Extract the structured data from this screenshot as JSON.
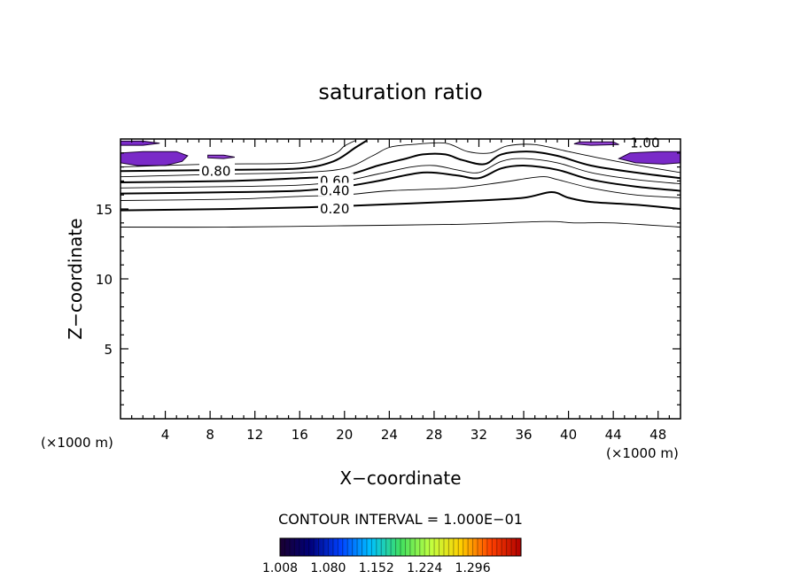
{
  "chart_data": {
    "type": "contour",
    "title": "saturation ratio",
    "xlabel": "X−coordinate",
    "ylabel": "Z−coordinate",
    "x_unit_label": "(×1000 m)",
    "z_unit_label": "(×1000 m)",
    "xlim": [
      0,
      50
    ],
    "zlim": [
      0,
      20
    ],
    "x_ticks": [
      4,
      8,
      12,
      16,
      20,
      24,
      28,
      32,
      36,
      40,
      44,
      48
    ],
    "x_tick_labels": [
      "4",
      "8",
      "12",
      "16",
      "20",
      "24",
      "28",
      "32",
      "36",
      "40",
      "44",
      "48"
    ],
    "z_ticks": [
      5,
      10,
      15
    ],
    "z_tick_labels": [
      "5",
      "10",
      "15"
    ],
    "contour_interval_text": "CONTOUR INTERVAL = 1.000E−01",
    "contour_labels": [
      {
        "text": "1.00",
        "x": 45.5,
        "z": 19.7
      },
      {
        "text": "0.80",
        "x": 7.2,
        "z": 17.7
      },
      {
        "text": "0.60",
        "x": 17.8,
        "z": 17.0
      },
      {
        "text": "0.40",
        "x": 17.8,
        "z": 16.3
      },
      {
        "text": "0.20",
        "x": 17.8,
        "z": 15.0
      }
    ],
    "contours": [
      {
        "level": 0.1,
        "weight": "thin",
        "points": [
          [
            0,
            13.7
          ],
          [
            10,
            13.7
          ],
          [
            20,
            13.8
          ],
          [
            30,
            13.9
          ],
          [
            38,
            14.1
          ],
          [
            40.5,
            14.0
          ],
          [
            44,
            14.0
          ],
          [
            50,
            13.7
          ]
        ]
      },
      {
        "level": 0.2,
        "weight": "bold",
        "points": [
          [
            0,
            14.9
          ],
          [
            10,
            15.0
          ],
          [
            16,
            15.1
          ],
          [
            20,
            15.2
          ],
          [
            26,
            15.4
          ],
          [
            32,
            15.6
          ],
          [
            36,
            15.8
          ],
          [
            38.5,
            16.2
          ],
          [
            40,
            15.8
          ],
          [
            42,
            15.5
          ],
          [
            46,
            15.3
          ],
          [
            50,
            15.0
          ]
        ]
      },
      {
        "level": 0.3,
        "weight": "thin",
        "points": [
          [
            0,
            15.6
          ],
          [
            10,
            15.7
          ],
          [
            16,
            15.9
          ],
          [
            20,
            16.0
          ],
          [
            24,
            16.3
          ],
          [
            30,
            16.5
          ],
          [
            34,
            16.9
          ],
          [
            37.5,
            17.3
          ],
          [
            39,
            17.1
          ],
          [
            42,
            16.5
          ],
          [
            46,
            16.0
          ],
          [
            50,
            15.8
          ]
        ]
      },
      {
        "level": 0.4,
        "weight": "bold",
        "points": [
          [
            0,
            16.1
          ],
          [
            10,
            16.2
          ],
          [
            16,
            16.3
          ],
          [
            20,
            16.6
          ],
          [
            23,
            17.0
          ],
          [
            27,
            17.6
          ],
          [
            30,
            17.4
          ],
          [
            32,
            17.2
          ],
          [
            34,
            17.9
          ],
          [
            36,
            18.1
          ],
          [
            39,
            17.8
          ],
          [
            42,
            17.1
          ],
          [
            46,
            16.6
          ],
          [
            50,
            16.3
          ]
        ]
      },
      {
        "level": 0.5,
        "weight": "thin",
        "points": [
          [
            0,
            16.5
          ],
          [
            10,
            16.6
          ],
          [
            16,
            16.7
          ],
          [
            20,
            17.0
          ],
          [
            23,
            17.5
          ],
          [
            26,
            18.0
          ],
          [
            28,
            18.1
          ],
          [
            30,
            17.8
          ],
          [
            32,
            17.6
          ],
          [
            34,
            18.4
          ],
          [
            36,
            18.6
          ],
          [
            39,
            18.3
          ],
          [
            42,
            17.6
          ],
          [
            46,
            17.1
          ],
          [
            50,
            16.8
          ]
        ]
      },
      {
        "level": 0.6,
        "weight": "bold",
        "points": [
          [
            0,
            16.9
          ],
          [
            10,
            17.0
          ],
          [
            16,
            17.2
          ],
          [
            20,
            17.4
          ],
          [
            23,
            18.1
          ],
          [
            25.5,
            18.6
          ],
          [
            27,
            18.9
          ],
          [
            29,
            18.9
          ],
          [
            30.5,
            18.5
          ],
          [
            32.5,
            18.2
          ],
          [
            34,
            18.9
          ],
          [
            36.5,
            19.1
          ],
          [
            39,
            18.8
          ],
          [
            42,
            18.1
          ],
          [
            46,
            17.6
          ],
          [
            50,
            17.2
          ]
        ]
      },
      {
        "level": 0.7,
        "weight": "thin",
        "points": [
          [
            0,
            17.3
          ],
          [
            10,
            17.5
          ],
          [
            16,
            17.6
          ],
          [
            20,
            17.9
          ],
          [
            22.5,
            18.8
          ],
          [
            24,
            19.4
          ],
          [
            26,
            19.6
          ],
          [
            29,
            19.7
          ],
          [
            31,
            19.1
          ],
          [
            33,
            19.0
          ],
          [
            34.5,
            19.5
          ],
          [
            37,
            19.6
          ],
          [
            40,
            19.1
          ],
          [
            43,
            18.6
          ],
          [
            47,
            18.0
          ],
          [
            50,
            17.6
          ]
        ]
      },
      {
        "level": 0.8,
        "weight": "bold",
        "points": [
          [
            0,
            17.7
          ],
          [
            10,
            17.8
          ],
          [
            16,
            17.9
          ],
          [
            19,
            18.4
          ],
          [
            21,
            19.4
          ],
          [
            22,
            19.9
          ]
        ]
      },
      {
        "level": 0.9,
        "weight": "thin",
        "points": [
          [
            0,
            18.0
          ],
          [
            8,
            18.2
          ],
          [
            16,
            18.3
          ],
          [
            19,
            18.9
          ],
          [
            20,
            19.5
          ],
          [
            21,
            19.9
          ]
        ]
      }
    ],
    "color_scale": {
      "min": 1.008,
      "max": 1.368,
      "steps": 50,
      "tick_values": [
        1.008,
        1.08,
        1.152,
        1.224,
        1.296
      ],
      "tick_labels": [
        "1.008",
        "1.080",
        "1.152",
        "1.224",
        "1.296"
      ],
      "colors": [
        "#1a0030",
        "#00007a",
        "#0040ff",
        "#00c0ff",
        "#40e060",
        "#c0ff40",
        "#ffd000",
        "#ff4000",
        "#b00000"
      ]
    },
    "shaded_regions": [
      {
        "value": 1.04,
        "color": "#7a2ac8",
        "polygon": [
          [
            0,
            18.3
          ],
          [
            1.5,
            18.1
          ],
          [
            4,
            18.1
          ],
          [
            5.5,
            18.4
          ],
          [
            6,
            18.8
          ],
          [
            5,
            19.1
          ],
          [
            2,
            19.1
          ],
          [
            0,
            19.0
          ]
        ]
      },
      {
        "value": 1.04,
        "color": "#7a2ac8",
        "polygon": [
          [
            0,
            19.55
          ],
          [
            2,
            19.55
          ],
          [
            3.5,
            19.7
          ],
          [
            2,
            19.85
          ],
          [
            0,
            19.85
          ]
        ]
      },
      {
        "value": 1.02,
        "color": "#9040d0",
        "polygon": [
          [
            7.8,
            18.65
          ],
          [
            9.2,
            18.6
          ],
          [
            10.2,
            18.7
          ],
          [
            9.2,
            18.85
          ],
          [
            7.8,
            18.85
          ]
        ]
      },
      {
        "value": 1.04,
        "color": "#7a2ac8",
        "polygon": [
          [
            44.5,
            18.6
          ],
          [
            46,
            18.3
          ],
          [
            48.5,
            18.2
          ],
          [
            50,
            18.3
          ],
          [
            50,
            19.1
          ],
          [
            48,
            19.1
          ],
          [
            45.5,
            19.0
          ]
        ]
      },
      {
        "value": 1.02,
        "color": "#9040d0",
        "polygon": [
          [
            40.5,
            19.65
          ],
          [
            42,
            19.55
          ],
          [
            44.5,
            19.6
          ],
          [
            44,
            19.8
          ],
          [
            41,
            19.8
          ]
        ]
      }
    ],
    "grid": false,
    "legend_placement": "bottom-center"
  }
}
